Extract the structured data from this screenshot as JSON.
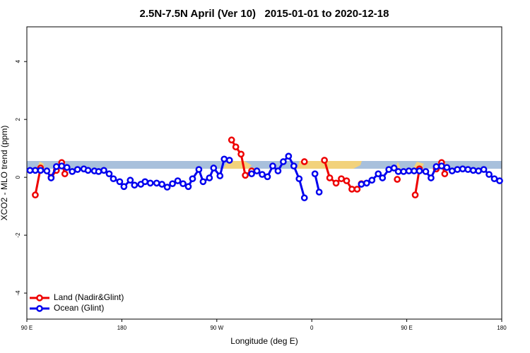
{
  "chart_data": {
    "type": "line",
    "title": "2.5N-7.5N April (Ver 10)   2015-01-01 to 2020-12-18",
    "xlabel": "Longitude (deg E)",
    "ylabel": "XCO2 - MLO trend (ppm)",
    "xlim": [
      90,
      540
    ],
    "ylim": [
      -4.9,
      5.2
    ],
    "xticks": [
      {
        "value": 90,
        "label": "90 E"
      },
      180,
      {
        "value": 270,
        "label": "90 W"
      },
      {
        "value": 360,
        "label": "0"
      },
      {
        "value": 450,
        "label": "90 E"
      },
      {
        "value": 540,
        "label": "180"
      }
    ],
    "yticks": [
      -4,
      -2,
      0,
      2,
      4
    ],
    "legend": "bottom-left",
    "series": [
      {
        "name": "Land (Nadir&Glint)",
        "color": "#ee0000",
        "x": [
          98,
          103,
          null,
          113,
          118,
          123,
          126,
          null,
          284,
          288,
          293,
          297,
          303,
          null,
          353,
          null,
          372,
          377,
          383,
          388,
          393,
          398,
          403,
          407,
          null,
          441,
          null,
          458,
          462,
          null,
          478,
          483,
          486
        ],
        "values": [
          -0.61,
          0.32,
          null,
          0,
          0.24,
          0.51,
          0.12,
          null,
          1.29,
          1.05,
          0.8,
          0.07,
          0.22,
          null,
          0.54,
          null,
          0.59,
          -0.02,
          -0.2,
          -0.05,
          -0.12,
          -0.41,
          -0.41,
          -0.22,
          null,
          -0.07,
          null,
          -0.61,
          0.29,
          null,
          0.29,
          0.51,
          0.12
        ]
      },
      {
        "name": "Ocean (Glint)",
        "color": "#0000ee",
        "x": [
          93,
          98,
          103,
          109,
          113,
          118,
          123,
          128,
          133,
          138,
          144,
          148,
          154,
          158,
          163,
          168,
          172,
          178,
          182,
          188,
          192,
          198,
          202,
          207,
          213,
          218,
          223,
          228,
          233,
          238,
          243,
          247,
          253,
          257,
          263,
          267,
          273,
          277,
          282,
          null,
          303,
          308,
          313,
          318,
          323,
          328,
          333,
          338,
          343,
          348,
          353,
          null,
          363,
          367,
          null,
          407,
          412,
          417,
          423,
          427,
          433,
          438,
          442,
          447,
          452,
          457,
          462,
          468,
          473,
          478,
          483,
          488,
          493,
          498,
          503,
          508,
          513,
          518,
          523,
          528,
          533,
          538
        ],
        "values": [
          0.24,
          0.24,
          0.24,
          0.22,
          -0.02,
          0.37,
          0.39,
          0.34,
          0.2,
          0.27,
          0.29,
          0.24,
          0.22,
          0.2,
          0.24,
          0.12,
          -0.05,
          -0.15,
          -0.32,
          -0.1,
          -0.27,
          -0.24,
          -0.15,
          -0.2,
          -0.2,
          -0.24,
          -0.34,
          -0.22,
          -0.12,
          -0.22,
          -0.32,
          -0.05,
          0.27,
          -0.15,
          -0.02,
          0.32,
          0.05,
          0.63,
          0.59,
          null,
          0.12,
          0.22,
          0.1,
          0.02,
          0.39,
          0.22,
          0.54,
          0.73,
          0.39,
          -0.05,
          -0.71,
          null,
          0.12,
          -0.51,
          null,
          -0.24,
          -0.2,
          -0.1,
          0.12,
          -0.02,
          0.27,
          0.32,
          0.2,
          0.2,
          0.22,
          0.22,
          0.22,
          0.2,
          -0.02,
          0.37,
          0.39,
          0.34,
          0.22,
          0.27,
          0.29,
          0.27,
          0.24,
          0.22,
          0.27,
          0.1,
          -0.05,
          -0.12
        ]
      }
    ]
  }
}
